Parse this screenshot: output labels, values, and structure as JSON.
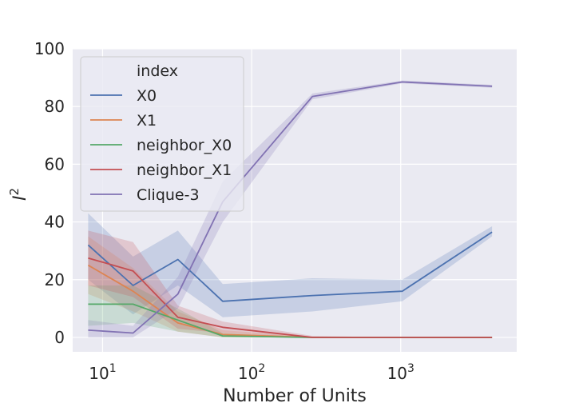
{
  "chart_data": {
    "type": "line",
    "title": "",
    "xlabel": "Number of Units",
    "ylabel": "I^2",
    "xscale": "log",
    "xlim": [
      6.3,
      6000
    ],
    "ylim": [
      -5,
      100
    ],
    "xticks": [
      {
        "value": 10,
        "base": "10",
        "exp": "1"
      },
      {
        "value": 100,
        "base": "10",
        "exp": "2"
      },
      {
        "value": 1000,
        "base": "10",
        "exp": "3"
      }
    ],
    "yticks": [
      0,
      20,
      40,
      60,
      80,
      100
    ],
    "grid": true,
    "legend": {
      "title": "index",
      "placement": "top-left"
    },
    "x": [
      8,
      16,
      32,
      64,
      256,
      1024,
      4096
    ],
    "series": [
      {
        "name": "X0",
        "color": "#4c72b0",
        "values": [
          32,
          18,
          27,
          12.5,
          14.5,
          16,
          36.5
        ],
        "lower": [
          20,
          8,
          18,
          7,
          9,
          12.5,
          35
        ],
        "upper": [
          43,
          28,
          37,
          18.5,
          20.5,
          20,
          38.5
        ]
      },
      {
        "name": "X1",
        "color": "#dd8452",
        "values": [
          25,
          16,
          5,
          1,
          0,
          0,
          0
        ],
        "lower": [
          15,
          9,
          2,
          0,
          0,
          0,
          0
        ],
        "upper": [
          35,
          24,
          9,
          2.5,
          0.2,
          0,
          0
        ]
      },
      {
        "name": "neighbor_X0",
        "color": "#55a868",
        "values": [
          11.5,
          11.5,
          6,
          0.5,
          0,
          0,
          0
        ],
        "lower": [
          4,
          5,
          2,
          0,
          0,
          0,
          0
        ],
        "upper": [
          18,
          18,
          10,
          1.5,
          0.1,
          0,
          0
        ]
      },
      {
        "name": "neighbor_X1",
        "color": "#c44e52",
        "values": [
          27.5,
          23,
          7,
          3.5,
          0,
          0,
          0
        ],
        "lower": [
          18,
          14,
          3,
          1.5,
          0,
          0,
          0
        ],
        "upper": [
          37,
          33,
          11,
          5.5,
          0.5,
          0,
          0
        ]
      },
      {
        "name": "Clique-3",
        "color": "#8172b3",
        "values": [
          2.5,
          1.5,
          15,
          47,
          83.5,
          88.5,
          87
        ],
        "lower": [
          0,
          0,
          10,
          40,
          82.5,
          88,
          86.5
        ],
        "upper": [
          6,
          4,
          21,
          54,
          84.5,
          89,
          87.5
        ]
      }
    ]
  }
}
